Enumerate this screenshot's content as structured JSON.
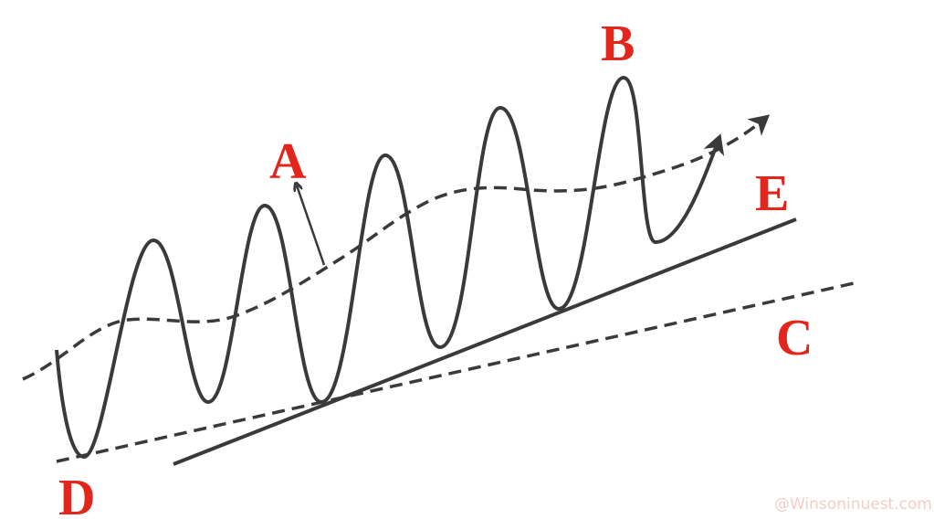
{
  "labels": {
    "a": "A",
    "b": "B",
    "c": "C",
    "d": "D",
    "e": "E"
  },
  "watermark": "@Winsoninuest.com",
  "colors": {
    "label": "#e3261c",
    "line": "#3a3a3a",
    "watermark": "#f2cfc4"
  }
}
